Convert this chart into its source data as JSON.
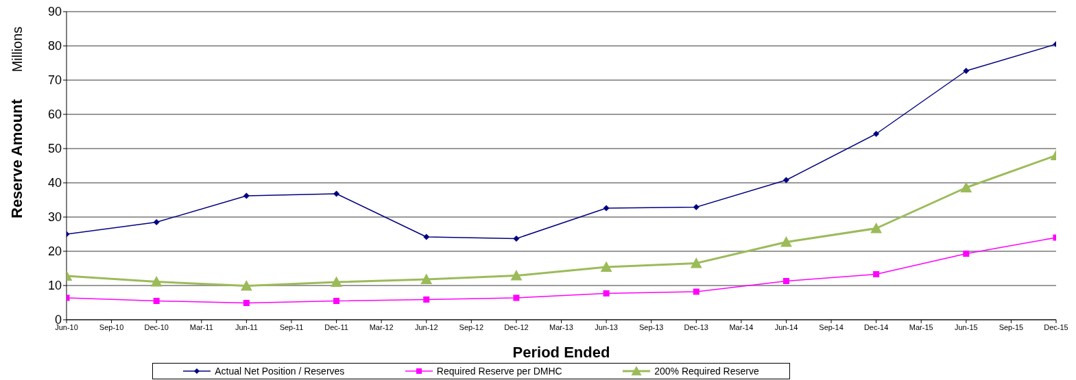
{
  "chart_data": {
    "type": "line",
    "xlabel": "Period Ended",
    "ylabel": "Reserve Amount",
    "annotations": [
      "Millions"
    ],
    "x": [
      "2010-06",
      "2010-12",
      "2011-06",
      "2011-12",
      "2012-06",
      "2012-12",
      "2013-06",
      "2013-12",
      "2014-06",
      "2014-12",
      "2015-06",
      "2015-12"
    ],
    "xlim": [
      "2010-06",
      "2015-12"
    ],
    "xticks": [
      {
        "value": "2010-06",
        "label": "Jun-10"
      },
      {
        "value": "2010-09",
        "label": "Sep-10"
      },
      {
        "value": "2010-12",
        "label": "Dec-10"
      },
      {
        "value": "2011-03",
        "label": "Mar-11"
      },
      {
        "value": "2011-06",
        "label": "Jun-11"
      },
      {
        "value": "2011-09",
        "label": "Sep-11"
      },
      {
        "value": "2011-12",
        "label": "Dec-11"
      },
      {
        "value": "2012-03",
        "label": "Mar-12"
      },
      {
        "value": "2012-06",
        "label": "Jun-12"
      },
      {
        "value": "2012-09",
        "label": "Sep-12"
      },
      {
        "value": "2012-12",
        "label": "Dec-12"
      },
      {
        "value": "2013-03",
        "label": "Mar-13"
      },
      {
        "value": "2013-06",
        "label": "Jun-13"
      },
      {
        "value": "2013-09",
        "label": "Sep-13"
      },
      {
        "value": "2013-12",
        "label": "Dec-13"
      },
      {
        "value": "2014-03",
        "label": "Mar-14"
      },
      {
        "value": "2014-06",
        "label": "Jun-14"
      },
      {
        "value": "2014-09",
        "label": "Sep-14"
      },
      {
        "value": "2014-12",
        "label": "Dec-14"
      },
      {
        "value": "2015-03",
        "label": "Mar-15"
      },
      {
        "value": "2015-06",
        "label": "Jun-15"
      },
      {
        "value": "2015-09",
        "label": "Sep-15"
      },
      {
        "value": "2015-12",
        "label": "Dec-15"
      }
    ],
    "ylim": [
      0,
      90
    ],
    "yticks": [
      0,
      10,
      20,
      30,
      40,
      50,
      60,
      70,
      80,
      90
    ],
    "grid": "y",
    "legend": "bottom",
    "series": [
      {
        "name": "Actual Net Position / Reserves",
        "color": "#000080",
        "marker": "diamond",
        "values": [
          25,
          28.5,
          36.2,
          36.8,
          24.2,
          23.7,
          32.6,
          32.9,
          40.8,
          54.3,
          72.7,
          80.5
        ]
      },
      {
        "name": "Required Reserve per DMHC",
        "color": "#ff00ff",
        "marker": "square",
        "values": [
          6.4,
          5.5,
          4.9,
          5.5,
          5.9,
          6.4,
          7.7,
          8.2,
          11.3,
          13.3,
          19.3,
          24
        ]
      },
      {
        "name": "200% Required Reserve",
        "color": "#9bbb59",
        "marker": "triangle",
        "values": [
          12.8,
          11.1,
          9.9,
          11,
          11.8,
          12.9,
          15.4,
          16.5,
          22.7,
          26.7,
          38.6,
          48
        ]
      }
    ]
  }
}
